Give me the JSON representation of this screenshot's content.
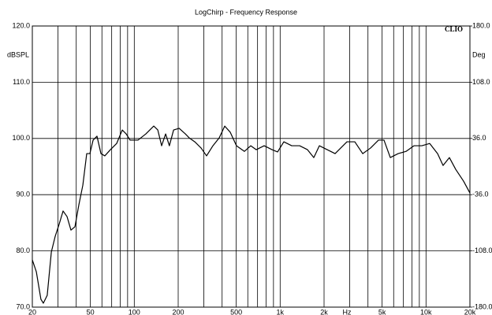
{
  "chart_data": {
    "type": "line",
    "title": "LogChirp - Frequency Response",
    "y_unit": "dBSPL",
    "y2_unit": "Deg",
    "x_unit": "Hz",
    "logo": "CLIO",
    "xscale": "log",
    "xlim": [
      20,
      20000
    ],
    "xticks": [
      20,
      50,
      100,
      200,
      500,
      {
        "value": 1000,
        "label": "1k"
      },
      {
        "value": 2000,
        "label": "2k"
      },
      {
        "value": 5000,
        "label": "5k"
      },
      {
        "value": 10000,
        "label": "10k"
      },
      {
        "value": 20000,
        "label": "20k"
      }
    ],
    "xgrid": [
      30,
      40,
      60,
      70,
      80,
      90,
      300,
      400,
      600,
      700,
      800,
      900,
      3000,
      4000,
      6000,
      7000,
      8000,
      9000
    ],
    "ylim": [
      70,
      120
    ],
    "yticks": [
      {
        "value": 70,
        "label": "70.0"
      },
      {
        "value": 80,
        "label": "80.0"
      },
      {
        "value": 90,
        "label": "90.0"
      },
      {
        "value": 100,
        "label": "100.0"
      },
      {
        "value": 110,
        "label": "110.0"
      },
      {
        "value": 120,
        "label": "120.0"
      }
    ],
    "y2lim": [
      -180,
      180
    ],
    "y2ticks": [
      {
        "value": -180,
        "label": "-180.0"
      },
      {
        "value": -108,
        "label": "-108.0"
      },
      {
        "value": -36,
        "label": "-36.0"
      },
      {
        "value": 36,
        "label": "36.0"
      },
      {
        "value": 108,
        "label": "108.0"
      },
      {
        "value": 180,
        "label": "180.0"
      }
    ],
    "grid": true,
    "x": [
      20,
      21.3,
      22.9,
      23.8,
      25.3,
      27.0,
      28.7,
      30.5,
      32.5,
      34.6,
      36.8,
      39.2,
      41.7,
      44.4,
      47.2,
      49.6,
      52.2,
      55.5,
      59.1,
      62.8,
      68.6,
      75.7,
      82.7,
      88.0,
      93.6,
      106,
      120,
      136,
      145,
      154,
      164,
      174,
      186,
      203,
      224,
      238,
      260,
      287,
      313,
      346,
      382,
      417,
      455,
      502,
      569,
      629,
      686,
      777,
      880,
      960,
      1060,
      1200,
      1360,
      1540,
      1701,
      1857,
      2102,
      2381,
      2870,
      3250,
      3681,
      4168,
      4722,
      5151,
      5690,
      6443,
      7299,
      8266,
      9361,
      10604,
      12008,
      13090,
      14460,
      15980,
      18090,
      20000
    ],
    "series": [
      {
        "name": "SPL",
        "color": "#000000",
        "values": [
          78.4,
          76.3,
          71.4,
          70.7,
          72.1,
          79.8,
          82.6,
          84.7,
          87.1,
          86.1,
          83.7,
          84.3,
          88.2,
          91.7,
          97.3,
          97.3,
          99.7,
          100.4,
          97.3,
          96.9,
          98.0,
          99.1,
          101.5,
          100.8,
          99.7,
          99.7,
          100.8,
          102.2,
          101.5,
          98.7,
          100.8,
          98.7,
          101.5,
          101.8,
          100.8,
          100.1,
          99.4,
          98.3,
          96.9,
          98.7,
          100.1,
          102.2,
          101.1,
          98.7,
          97.7,
          98.7,
          98.0,
          98.7,
          98.0,
          97.6,
          99.4,
          98.7,
          98.7,
          98.0,
          96.6,
          98.7,
          98.0,
          97.3,
          99.4,
          99.4,
          97.3,
          98.3,
          99.7,
          99.7,
          96.6,
          97.3,
          97.7,
          98.7,
          98.7,
          99.1,
          97.3,
          95.2,
          96.6,
          94.5,
          92.4,
          90.3
        ]
      }
    ]
  }
}
